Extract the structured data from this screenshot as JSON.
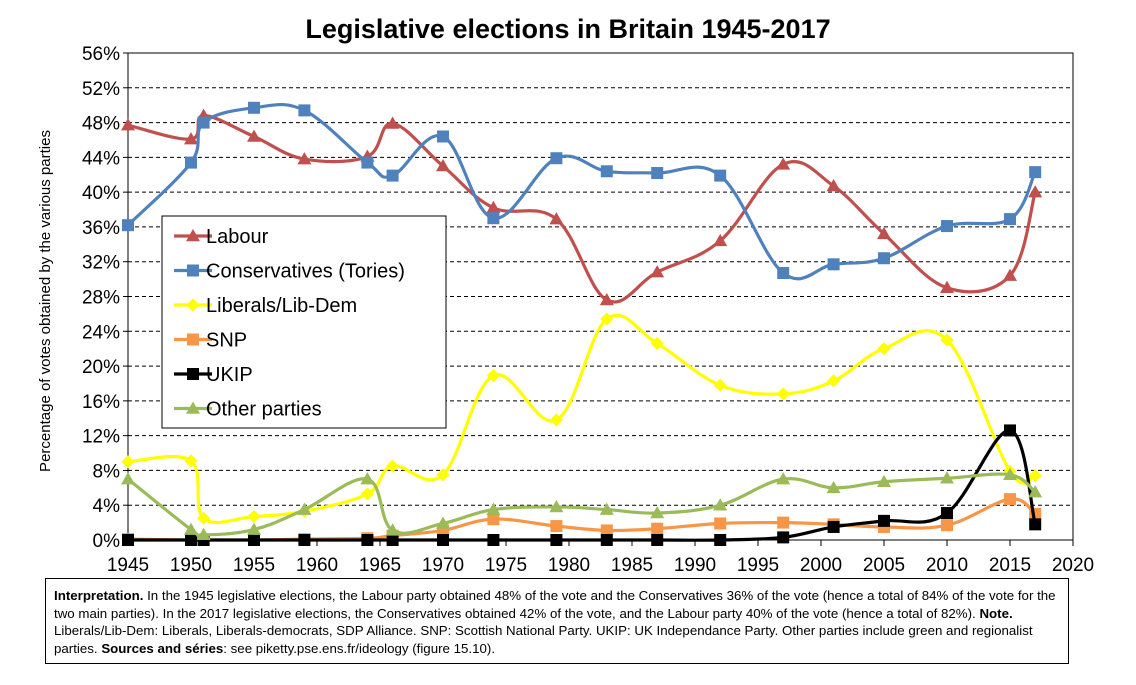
{
  "chart_data": {
    "type": "line",
    "title": "Legislative elections in Britain 1945-2017",
    "ylabel": "Percentage of votes obtained by the various parties",
    "xlabel": "",
    "xlim": [
      1945,
      2020
    ],
    "ylim": [
      0,
      56
    ],
    "x_ticks": [
      "1945",
      "1950",
      "1955",
      "1960",
      "1965",
      "1970",
      "1975",
      "1980",
      "1985",
      "1990",
      "1995",
      "2000",
      "2005",
      "2010",
      "2015",
      "2020"
    ],
    "y_ticks": [
      "0%",
      "4%",
      "8%",
      "12%",
      "16%",
      "20%",
      "24%",
      "28%",
      "32%",
      "36%",
      "40%",
      "44%",
      "48%",
      "52%",
      "56%"
    ],
    "grid": "horizontal dashed",
    "legend_position": "left",
    "x": [
      1945,
      1950,
      1951,
      1955,
      1959,
      1964,
      1966,
      1970,
      1974,
      1979,
      1983,
      1987,
      1992,
      1997,
      2001,
      2005,
      2010,
      2015,
      2017
    ],
    "series": [
      {
        "name": "Labour",
        "color": "#C0504D",
        "marker": "triangle",
        "values": [
          47.7,
          46.1,
          48.8,
          46.4,
          43.8,
          44.1,
          47.9,
          43.0,
          38.2,
          36.9,
          27.6,
          30.8,
          34.4,
          43.2,
          40.7,
          35.2,
          29.0,
          30.4,
          40.0
        ]
      },
      {
        "name": "Conservatives (Tories)",
        "color": "#4F81BD",
        "marker": "square",
        "values": [
          36.2,
          43.4,
          48.0,
          49.7,
          49.4,
          43.4,
          41.9,
          46.4,
          37.0,
          43.9,
          42.4,
          42.2,
          41.9,
          30.7,
          31.7,
          32.4,
          36.1,
          36.9,
          42.3
        ]
      },
      {
        "name": "Liberals/Lib-Dem",
        "color": "#FFFF00",
        "marker": "diamond",
        "values": [
          9.0,
          9.1,
          2.5,
          2.7,
          3.3,
          5.3,
          8.5,
          7.5,
          18.9,
          13.8,
          25.4,
          22.6,
          17.8,
          16.8,
          18.3,
          22.0,
          23.0,
          7.9,
          7.4
        ]
      },
      {
        "name": "SNP",
        "color": "#F79646",
        "marker": "square",
        "values": [
          0.1,
          0.0,
          0.0,
          0.0,
          0.1,
          0.2,
          0.5,
          1.1,
          2.4,
          1.6,
          1.1,
          1.3,
          1.9,
          2.0,
          1.8,
          1.5,
          1.7,
          4.7,
          3.0
        ]
      },
      {
        "name": "UKIP",
        "color": "#000000",
        "marker": "square",
        "values": [
          0.0,
          0.0,
          0.0,
          0.0,
          0.0,
          0.0,
          0.0,
          0.0,
          0.0,
          0.0,
          0.0,
          0.0,
          0.0,
          0.3,
          1.5,
          2.2,
          3.1,
          12.6,
          1.8
        ]
      },
      {
        "name": "Other parties",
        "color": "#9BBB59",
        "marker": "triangle",
        "values": [
          7.0,
          1.2,
          0.6,
          1.2,
          3.5,
          7.0,
          1.1,
          1.9,
          3.5,
          3.8,
          3.5,
          3.1,
          4.0,
          7.0,
          6.0,
          6.7,
          7.1,
          7.5,
          5.5
        ]
      }
    ]
  },
  "note": {
    "interpretation_label": "Interpretation.",
    "interpretation_text": " In the 1945 legislative elections, the Labour party obtained 48% of the vote and the Conservatives 36% of the vote (hence a total of 84% of the vote for the two main parties). In the 2017 legislative elections, the Conservatives obtained 42% of the vote, and the Labour party 40% of the vote (hence a total of 82%). ",
    "note_label": "Note.",
    "note_text": " Liberals/Lib-Dem: Liberals, Liberals-democrats, SDP Alliance. SNP: Scottish National Party. UKIP: UK Independance Party. Other parties include green and regionalist parties. ",
    "sources_label": "Sources and séries",
    "sources_text": ": see piketty.pse.ens.fr/ideology (figure 15.10)."
  }
}
